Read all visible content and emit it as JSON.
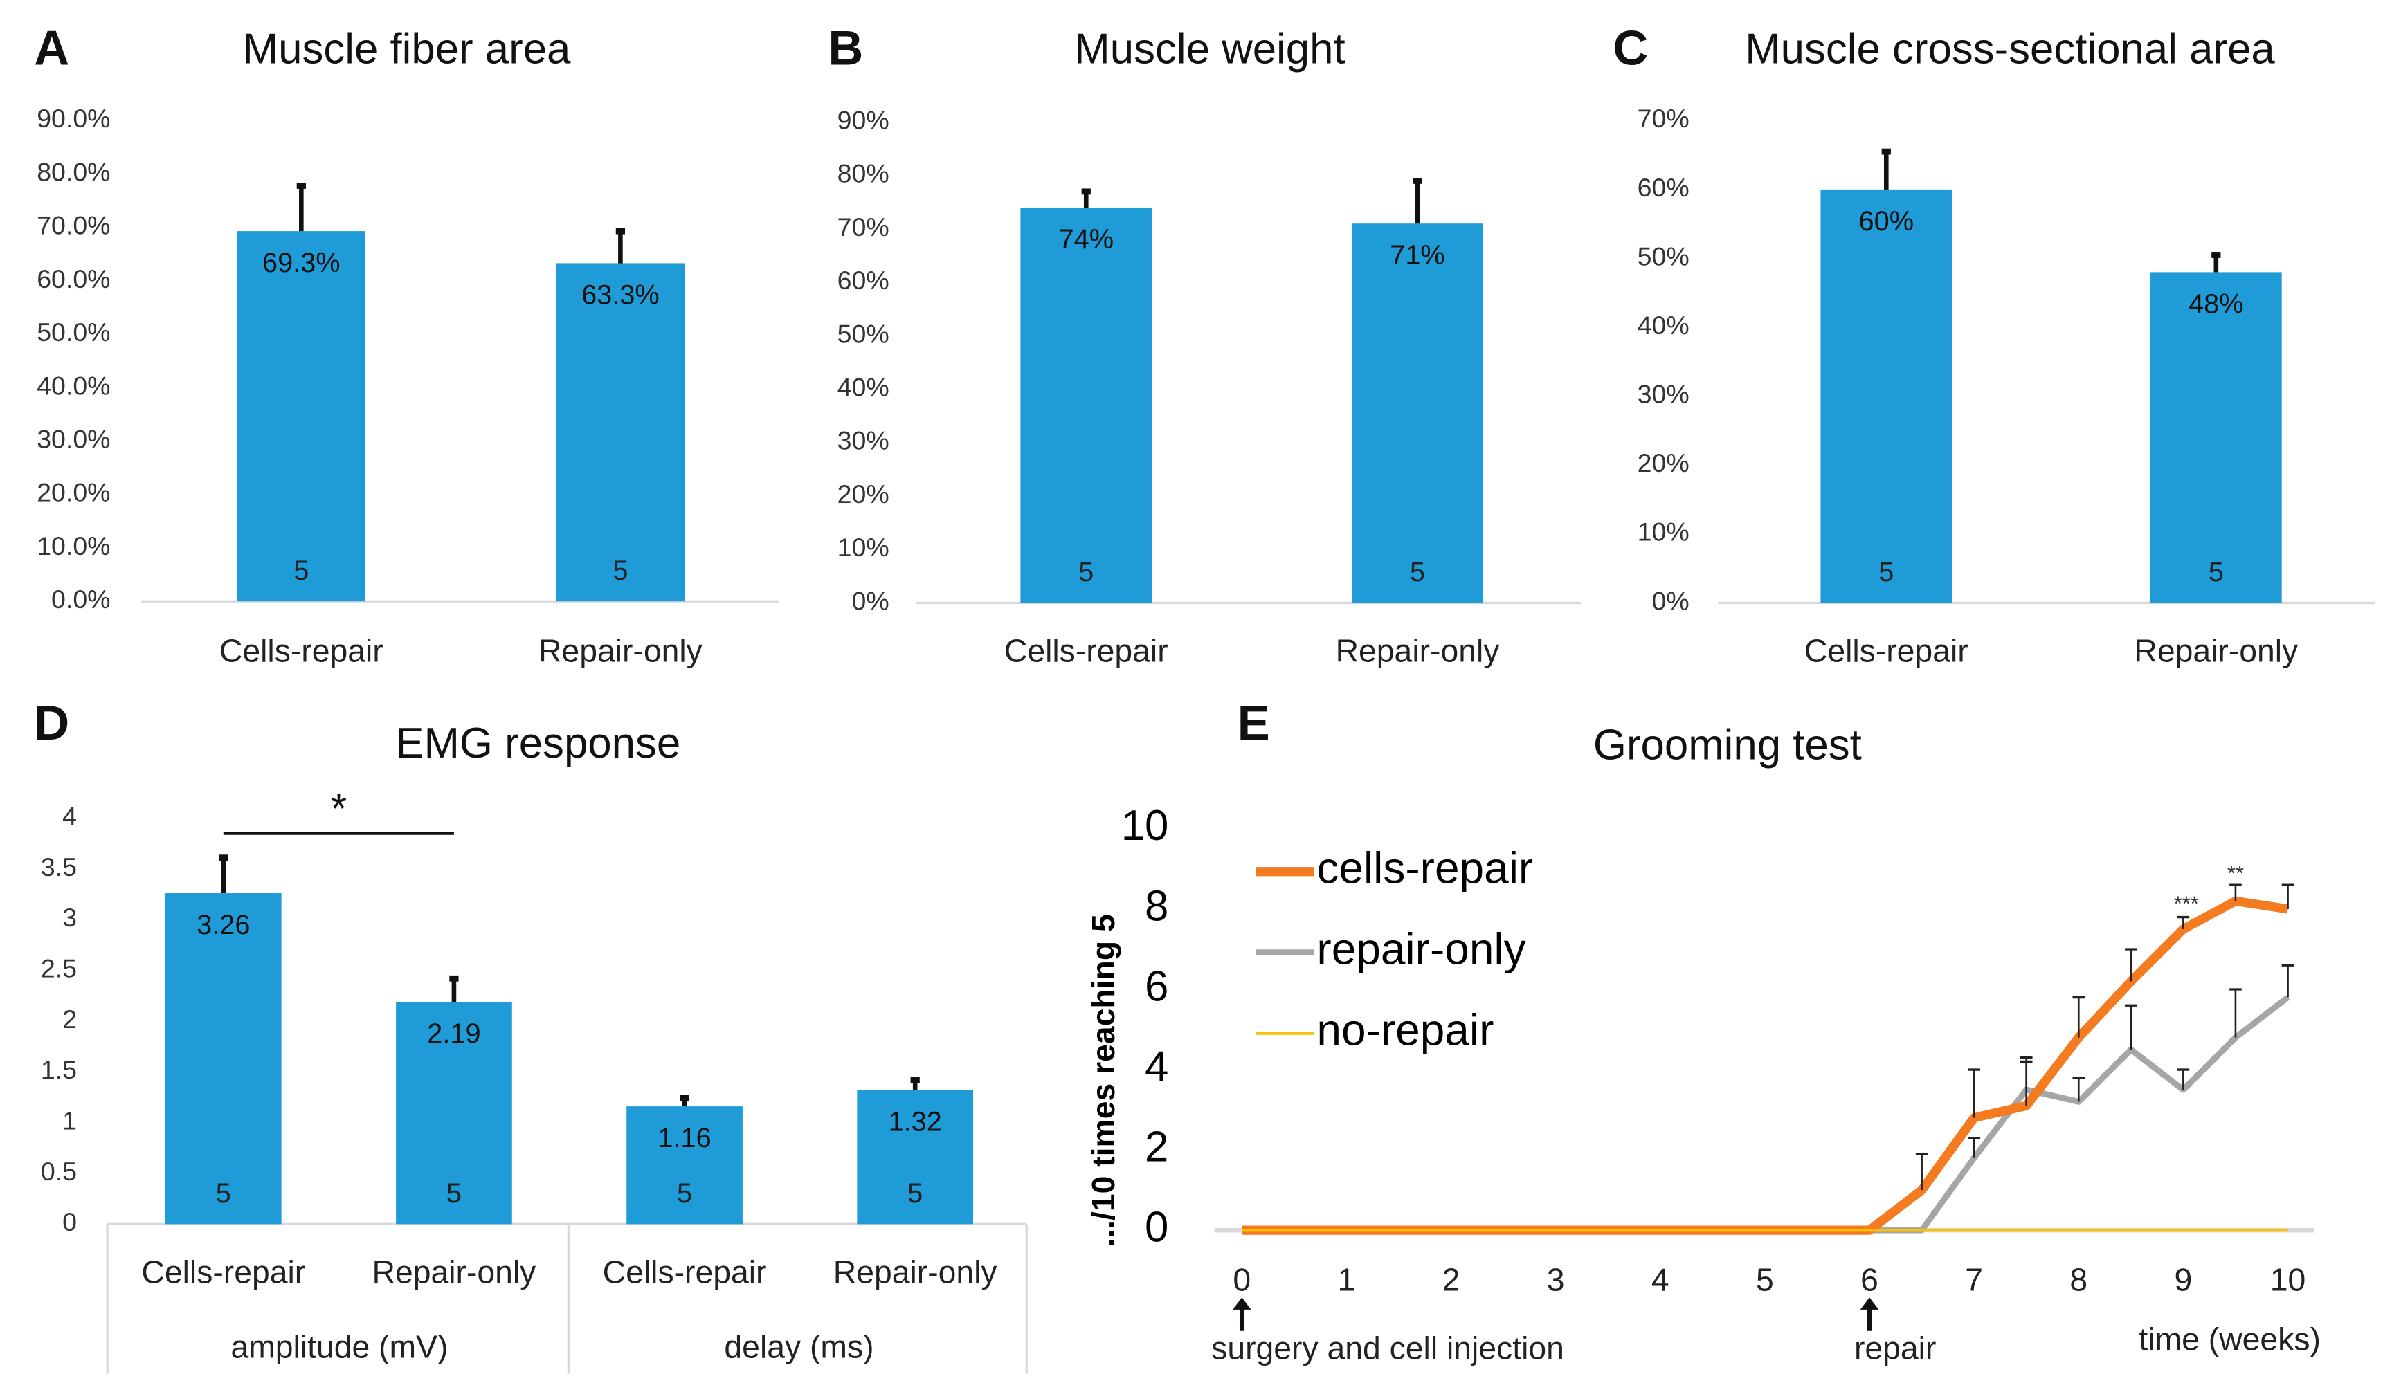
{
  "colors": {
    "bar": "#1f9bd7",
    "cells_repair": "#f47b20",
    "repair_only": "#a6a6a6",
    "no_repair": "#ffc000",
    "error": "#111111"
  },
  "chart_data": [
    {
      "id": "A",
      "letter": "A",
      "type": "bar",
      "title": "Muscle fiber area",
      "categories": [
        "Cells-repair",
        "Repair-only"
      ],
      "values": [
        69.3,
        63.3
      ],
      "value_labels": [
        "69.3%",
        "63.3%"
      ],
      "errors": [
        8.5,
        6.0
      ],
      "n": [
        "5",
        "5"
      ],
      "ylim": [
        0,
        90
      ],
      "yticks": [
        "0.0%",
        "10.0%",
        "20.0%",
        "30.0%",
        "40.0%",
        "50.0%",
        "60.0%",
        "70.0%",
        "80.0%",
        "90.0%"
      ],
      "ystep": 10
    },
    {
      "id": "B",
      "letter": "B",
      "type": "bar",
      "title": "Muscle weight",
      "categories": [
        "Cells-repair",
        "Repair-only"
      ],
      "values": [
        74,
        71
      ],
      "value_labels": [
        "74%",
        "71%"
      ],
      "errors": [
        3,
        8
      ],
      "n": [
        "5",
        "5"
      ],
      "ylim": [
        0,
        90
      ],
      "yticks": [
        "0%",
        "10%",
        "20%",
        "30%",
        "40%",
        "50%",
        "60%",
        "70%",
        "80%",
        "90%"
      ],
      "ystep": 10
    },
    {
      "id": "C",
      "letter": "C",
      "type": "bar",
      "title": "Muscle cross-sectional area",
      "categories": [
        "Cells-repair",
        "Repair-only"
      ],
      "values": [
        60,
        48
      ],
      "value_labels": [
        "60%",
        "48%"
      ],
      "errors": [
        5.5,
        2.5
      ],
      "n": [
        "5",
        "5"
      ],
      "ylim": [
        0,
        70
      ],
      "yticks": [
        "0%",
        "10%",
        "20%",
        "30%",
        "40%",
        "50%",
        "60%",
        "70%"
      ],
      "ystep": 10
    },
    {
      "id": "D",
      "letter": "D",
      "type": "bar",
      "title": "EMG response",
      "categories": [
        "Cells-repair",
        "Repair-only",
        "Cells-repair",
        "Repair-only"
      ],
      "groups": [
        "amplitude (mV)",
        "delay (ms)"
      ],
      "values": [
        3.26,
        2.19,
        1.16,
        1.32
      ],
      "value_labels": [
        "3.26",
        "2.19",
        "1.16",
        "1.32"
      ],
      "errors": [
        0.35,
        0.23,
        0.08,
        0.1
      ],
      "n": [
        "5",
        "5",
        "5",
        "5"
      ],
      "ylim": [
        0,
        4
      ],
      "yticks": [
        "0",
        "0.5",
        "1",
        "1.5",
        "2",
        "2.5",
        "3",
        "3.5",
        "4"
      ],
      "ystep": 0.5,
      "significance": {
        "between": [
          0,
          1
        ],
        "label": "*"
      }
    },
    {
      "id": "E",
      "letter": "E",
      "type": "line",
      "title": "Grooming test",
      "ylabel": ".../10 times reaching 5",
      "xlabel": "time (weeks)",
      "xlim": [
        0,
        10
      ],
      "ylim": [
        0,
        10
      ],
      "xticks": [
        "0",
        "1",
        "2",
        "3",
        "4",
        "5",
        "6",
        "7",
        "8",
        "9",
        "10"
      ],
      "yticks": [
        "0",
        "2",
        "4",
        "6",
        "8",
        "10"
      ],
      "annotations": [
        {
          "x": 0,
          "text": "surgery and cell injection"
        },
        {
          "x": 6,
          "text": "repair"
        }
      ],
      "stars": [
        {
          "x": 9,
          "text": "***"
        },
        {
          "x": 9.5,
          "text": "**"
        }
      ],
      "legend": "top-left",
      "series": [
        {
          "name": "cells-repair",
          "color_key": "cells_repair",
          "x": [
            0,
            1,
            2,
            3,
            4,
            5,
            6,
            6.5,
            7,
            7.5,
            8,
            8.5,
            9,
            9.5,
            10
          ],
          "y": [
            0,
            0,
            0,
            0,
            0,
            0,
            0,
            1.0,
            2.8,
            3.1,
            4.8,
            6.2,
            7.5,
            8.2,
            8.0
          ],
          "err": [
            0,
            0,
            0,
            0,
            0,
            0,
            0,
            0.9,
            1.2,
            1.2,
            1.0,
            0.8,
            0.3,
            0.4,
            0.6
          ]
        },
        {
          "name": "repair-only",
          "color_key": "repair_only",
          "x": [
            0,
            1,
            2,
            3,
            4,
            5,
            6,
            6.5,
            7,
            7.5,
            8,
            8.5,
            9,
            9.5,
            10
          ],
          "y": [
            0,
            0,
            0,
            0,
            0,
            0,
            0,
            0,
            1.8,
            3.5,
            3.2,
            4.5,
            3.5,
            4.8,
            5.8
          ],
          "err": [
            0,
            0,
            0,
            0,
            0,
            0,
            0,
            0,
            0.5,
            0.7,
            0.6,
            1.1,
            0.5,
            1.2,
            0.8
          ]
        },
        {
          "name": "no-repair",
          "color_key": "no_repair",
          "x": [
            0,
            1,
            2,
            3,
            4,
            5,
            6,
            6.5,
            7,
            7.5,
            8,
            8.5,
            9,
            9.5,
            10
          ],
          "y": [
            0,
            0,
            0,
            0,
            0,
            0,
            0,
            0,
            0,
            0,
            0,
            0,
            0,
            0,
            0
          ],
          "err": []
        }
      ]
    }
  ]
}
